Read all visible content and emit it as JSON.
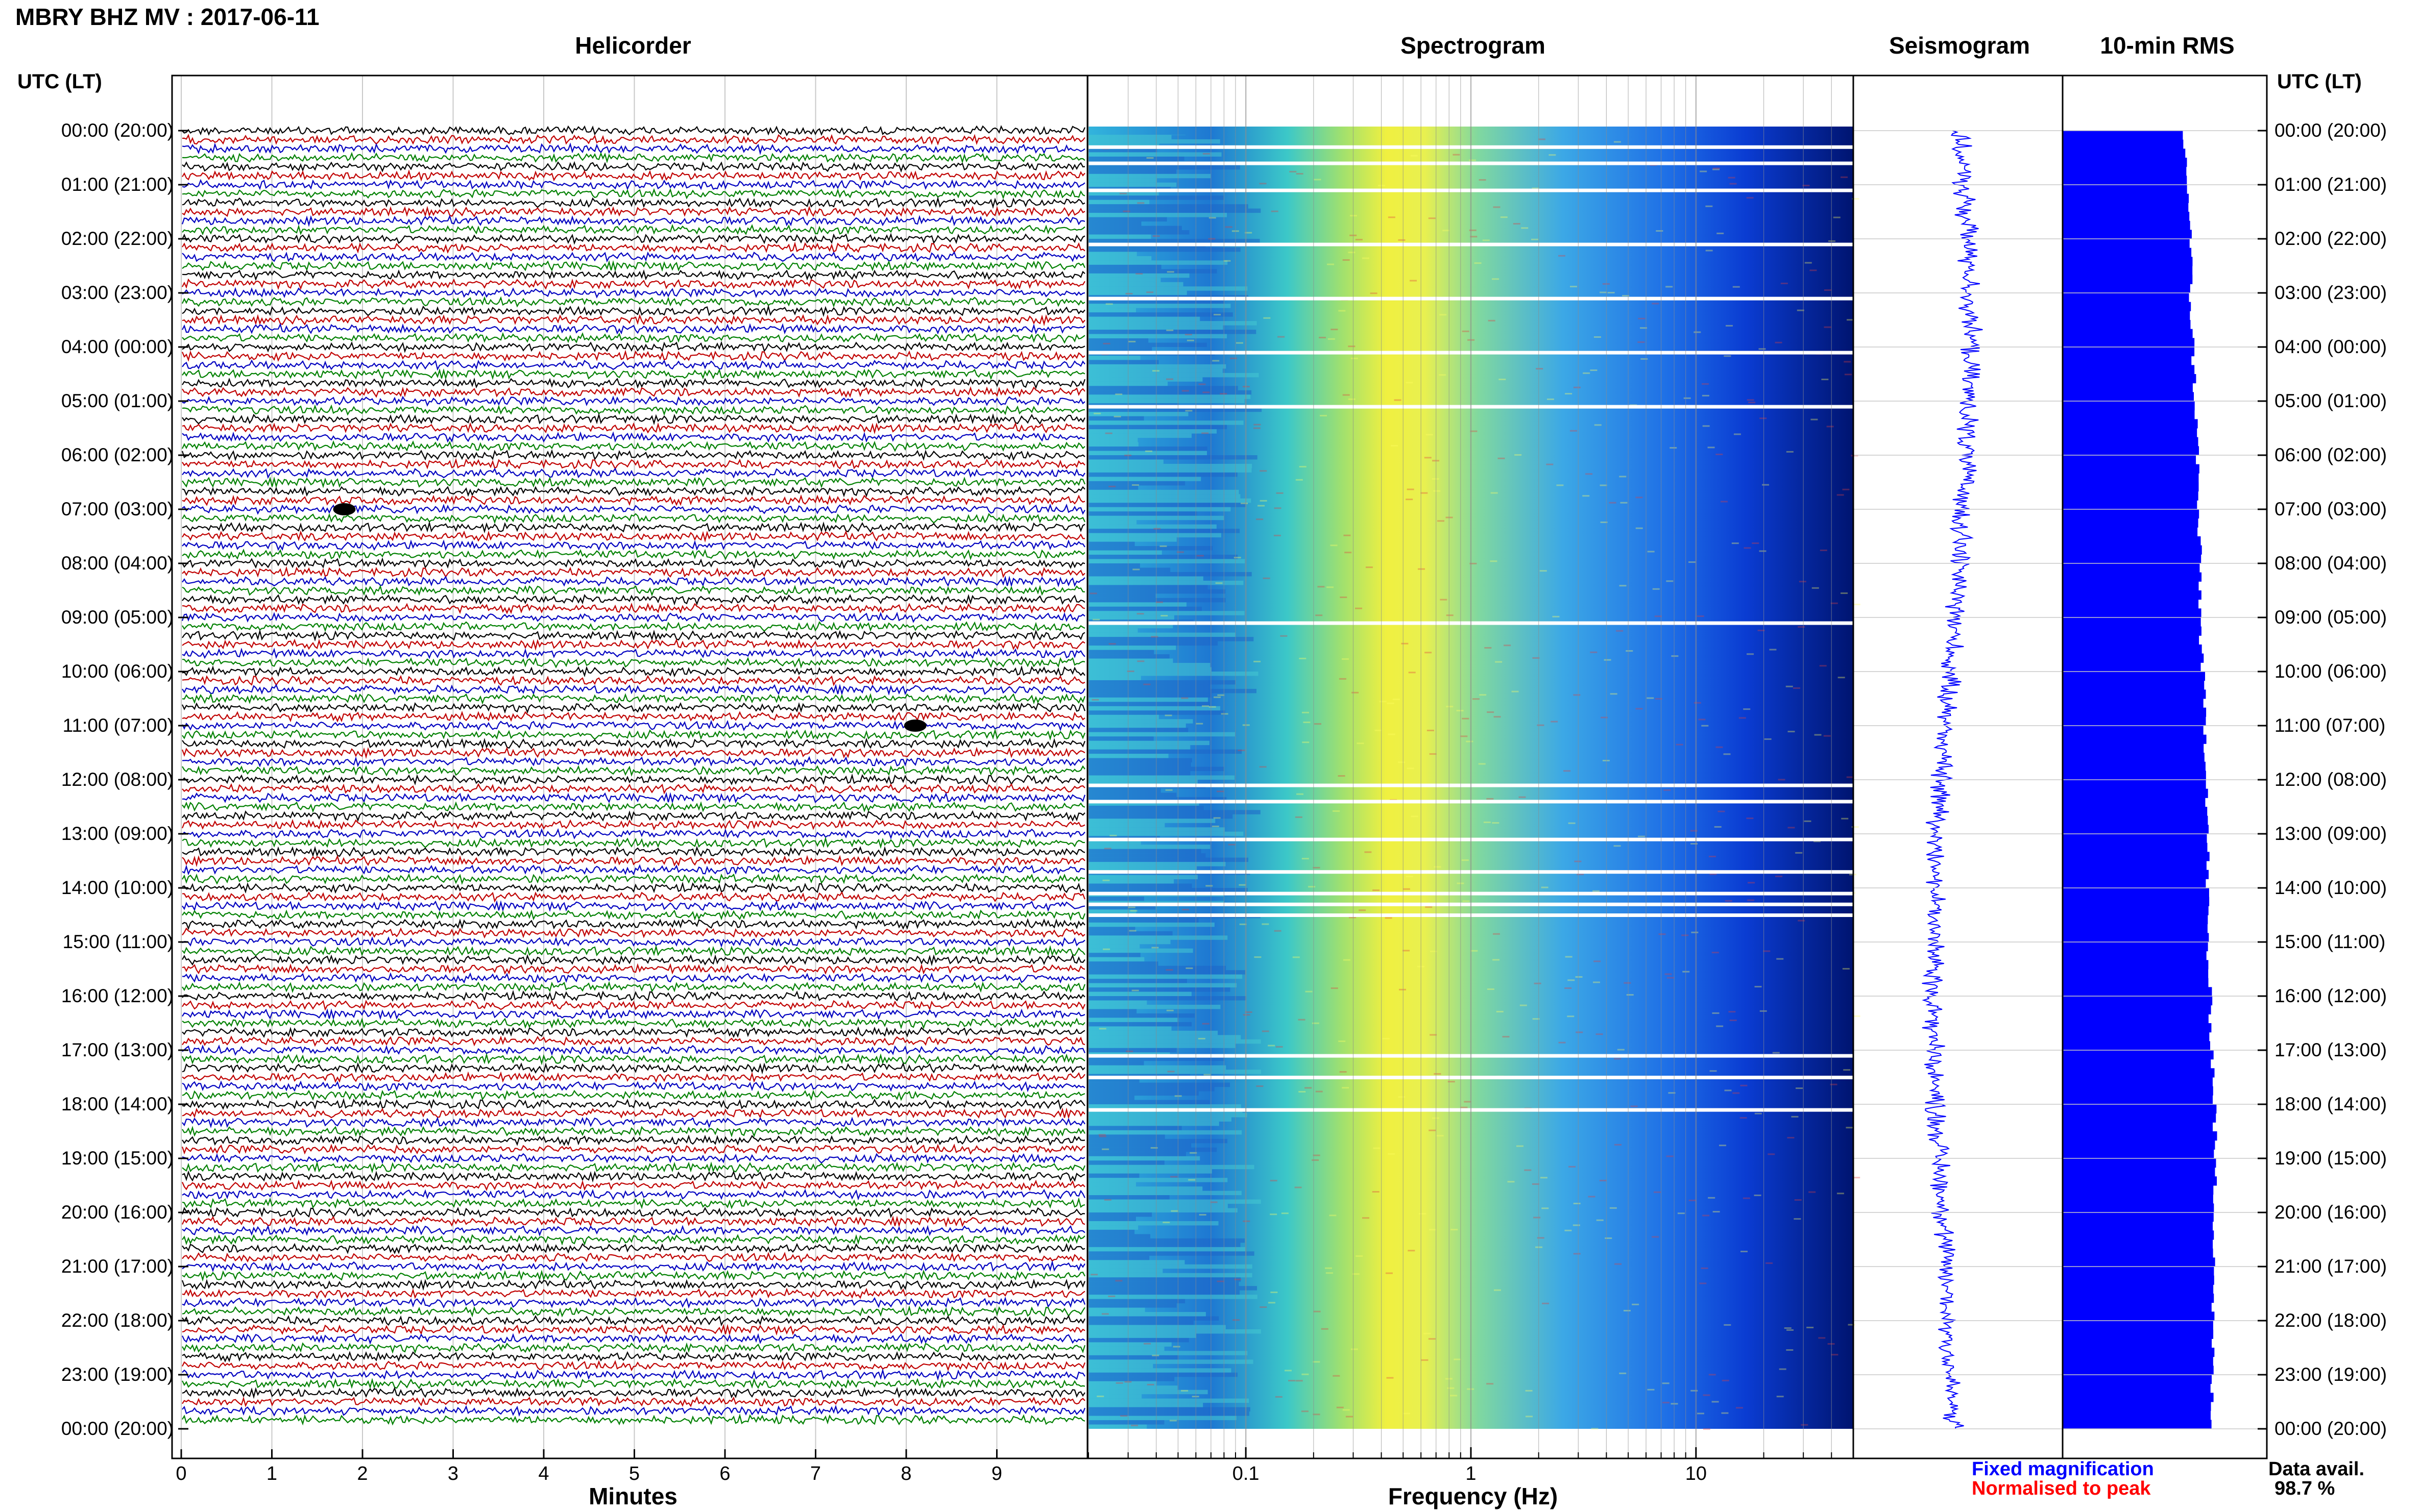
{
  "header": {
    "title": "MBRY BHZ MV : 2017-06-11",
    "utc_left": "UTC (LT)",
    "utc_right": "UTC (LT)"
  },
  "panels": {
    "helicorder": "Helicorder",
    "spectrogram": "Spectrogram",
    "seismogram": "Seismogram",
    "rms": "10-min RMS"
  },
  "time_labels": [
    "00:00 (20:00)",
    "01:00 (21:00)",
    "02:00 (22:00)",
    "03:00 (23:00)",
    "04:00 (00:00)",
    "05:00 (01:00)",
    "06:00 (02:00)",
    "07:00 (03:00)",
    "08:00 (04:00)",
    "09:00 (05:00)",
    "10:00 (06:00)",
    "11:00 (07:00)",
    "12:00 (08:00)",
    "13:00 (09:00)",
    "14:00 (10:00)",
    "15:00 (11:00)",
    "16:00 (12:00)",
    "17:00 (13:00)",
    "18:00 (14:00)",
    "19:00 (15:00)",
    "20:00 (16:00)",
    "21:00 (17:00)",
    "22:00 (18:00)",
    "23:00 (19:00)",
    "00:00 (20:00)"
  ],
  "footer": {
    "x_title_helicorder": "Minutes",
    "x_title_spectrogram": "Frequency (Hz)",
    "legend_fixed": "Fixed magnification",
    "legend_normalised": "Normalised to peak",
    "data_avail_label": "Data avail.",
    "data_avail_value": "98.7 %"
  },
  "colors": {
    "trace_cycle": [
      "#000000",
      "#c00000",
      "#0000c0",
      "#008000"
    ],
    "legend_fixed": "#0000ff",
    "legend_normalised": "#ff0000",
    "rms_bar": "#0000ff",
    "seismogram": "#0000ff"
  },
  "chart_data": [
    {
      "type": "line",
      "name": "helicorder",
      "x_ticks": [
        0,
        1,
        2,
        3,
        4,
        5,
        6,
        7,
        8,
        9
      ],
      "xlim": [
        0,
        10
      ],
      "xlabel": "Minutes",
      "hours": 24,
      "lines_per_hour": 6,
      "note_events": [
        {
          "hour_line": 42,
          "minute": 1.8
        },
        {
          "hour_line": 66,
          "minute": 8.1
        }
      ]
    },
    {
      "type": "heatmap",
      "name": "spectrogram",
      "x_scale": "log",
      "xlim": [
        0.02,
        50
      ],
      "x_ticks": [
        0.1,
        1,
        10
      ],
      "x_tick_labels": [
        "0.1",
        "1",
        "10"
      ],
      "xlabel": "Frequency (Hz)",
      "peak_frequency_hz": 0.45,
      "gap_hours": [
        0.3,
        0.6,
        1.1,
        2.1,
        3.1,
        4.1,
        5.1,
        9.1,
        12.1,
        12.4,
        13.1,
        13.7,
        14.1,
        14.3,
        14.5,
        17.1,
        17.5,
        18.1
      ]
    },
    {
      "type": "line",
      "name": "seismogram",
      "drift": [
        0.0,
        0.05,
        0.1,
        0.12,
        0.12,
        0.1,
        0.08,
        0.05,
        0.02,
        -0.02,
        -0.08,
        -0.12,
        -0.16,
        -0.2,
        -0.22,
        -0.23,
        -0.24,
        -0.24,
        -0.22,
        -0.18,
        -0.15,
        -0.12,
        -0.1,
        -0.08,
        -0.05
      ]
    },
    {
      "type": "bar",
      "name": "10-min RMS",
      "hourly_values": [
        0.5,
        0.52,
        0.53,
        0.53,
        0.54,
        0.55,
        0.56,
        0.56,
        0.57,
        0.57,
        0.58,
        0.59,
        0.6,
        0.6,
        0.6,
        0.6,
        0.61,
        0.62,
        0.63,
        0.63,
        0.63,
        0.63,
        0.62,
        0.62,
        0.61
      ]
    }
  ]
}
